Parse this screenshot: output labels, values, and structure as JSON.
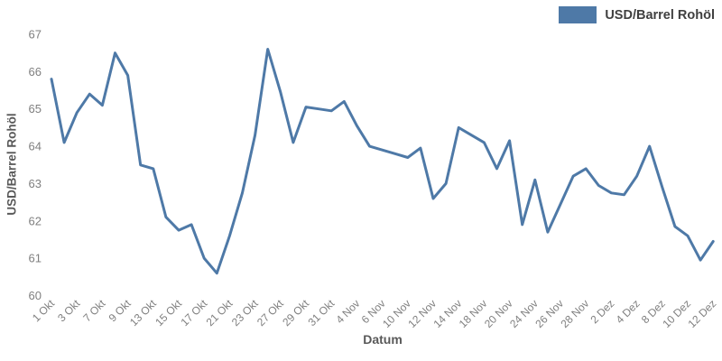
{
  "legend": {
    "label": "USD/Barrel Rohöl"
  },
  "axes": {
    "x_title": "Datum",
    "y_title": "USD/Barrel Rohöl"
  },
  "chart_data": {
    "type": "line",
    "title": "",
    "series_name": "USD/Barrel Rohöl",
    "xlabel": "Datum",
    "ylabel": "USD/Barrel Rohöl",
    "x": [
      "1 Okt",
      "2 Okt",
      "3 Okt",
      "6 Okt",
      "7 Okt",
      "8 Okt",
      "9 Okt",
      "10 Okt",
      "13 Okt",
      "14 Okt",
      "15 Okt",
      "16 Okt",
      "17 Okt",
      "20 Okt",
      "21 Okt",
      "22 Okt",
      "23 Okt",
      "24 Okt",
      "27 Okt",
      "28 Okt",
      "29 Okt",
      "30 Okt",
      "31 Okt",
      "3 Nov",
      "4 Nov",
      "5 Nov",
      "6 Nov",
      "7 Nov",
      "10 Nov",
      "11 Nov",
      "12 Nov",
      "13 Nov",
      "14 Nov",
      "17 Nov",
      "18 Nov",
      "19 Nov",
      "20 Nov",
      "21 Nov",
      "24 Nov",
      "25 Nov",
      "26 Nov",
      "27 Nov",
      "28 Nov",
      "1 Dez",
      "2 Dez",
      "3 Dez",
      "4 Dez",
      "5 Dez",
      "8 Dez",
      "9 Dez",
      "10 Dez",
      "11 Dez",
      "12 Dez"
    ],
    "values": [
      65.8,
      64.1,
      64.9,
      65.4,
      65.1,
      66.5,
      65.9,
      63.5,
      63.4,
      62.1,
      61.75,
      61.9,
      61.0,
      60.6,
      61.6,
      62.75,
      64.3,
      66.6,
      65.45,
      64.1,
      65.05,
      65.0,
      64.95,
      65.2,
      64.55,
      64.0,
      63.9,
      63.8,
      63.7,
      63.95,
      62.6,
      63.0,
      64.5,
      64.3,
      64.1,
      63.4,
      64.15,
      61.9,
      63.1,
      61.7,
      62.45,
      63.2,
      63.4,
      62.95,
      62.75,
      62.7,
      63.2,
      64.0,
      62.9,
      61.85,
      61.6,
      60.95,
      61.45
    ],
    "x_tick_labels": [
      "1 Okt",
      "3 Okt",
      "7 Okt",
      "9 Okt",
      "13 Okt",
      "15 Okt",
      "17 Okt",
      "21 Okt",
      "23 Okt",
      "27 Okt",
      "29 Okt",
      "31 Okt",
      "4 Nov",
      "6 Nov",
      "10 Nov",
      "12 Nov",
      "14 Nov",
      "18 Nov",
      "20 Nov",
      "24 Nov",
      "26 Nov",
      "28 Nov",
      "2 Dez",
      "4 Dez",
      "8 Dez",
      "10 Dez",
      "12 Dez"
    ],
    "x_tick_every": 2,
    "y_ticks": [
      60,
      61,
      62,
      63,
      64,
      65,
      66,
      67
    ],
    "ylim": [
      60,
      67
    ],
    "grid": false,
    "axis_spines": false,
    "legend_position": "top-right",
    "line_color": "#4e79a7",
    "tick_label_color": "#7f7f7f",
    "axis_title_color": "#595959",
    "legend_text_color": "#404040",
    "background": "#ffffff"
  }
}
